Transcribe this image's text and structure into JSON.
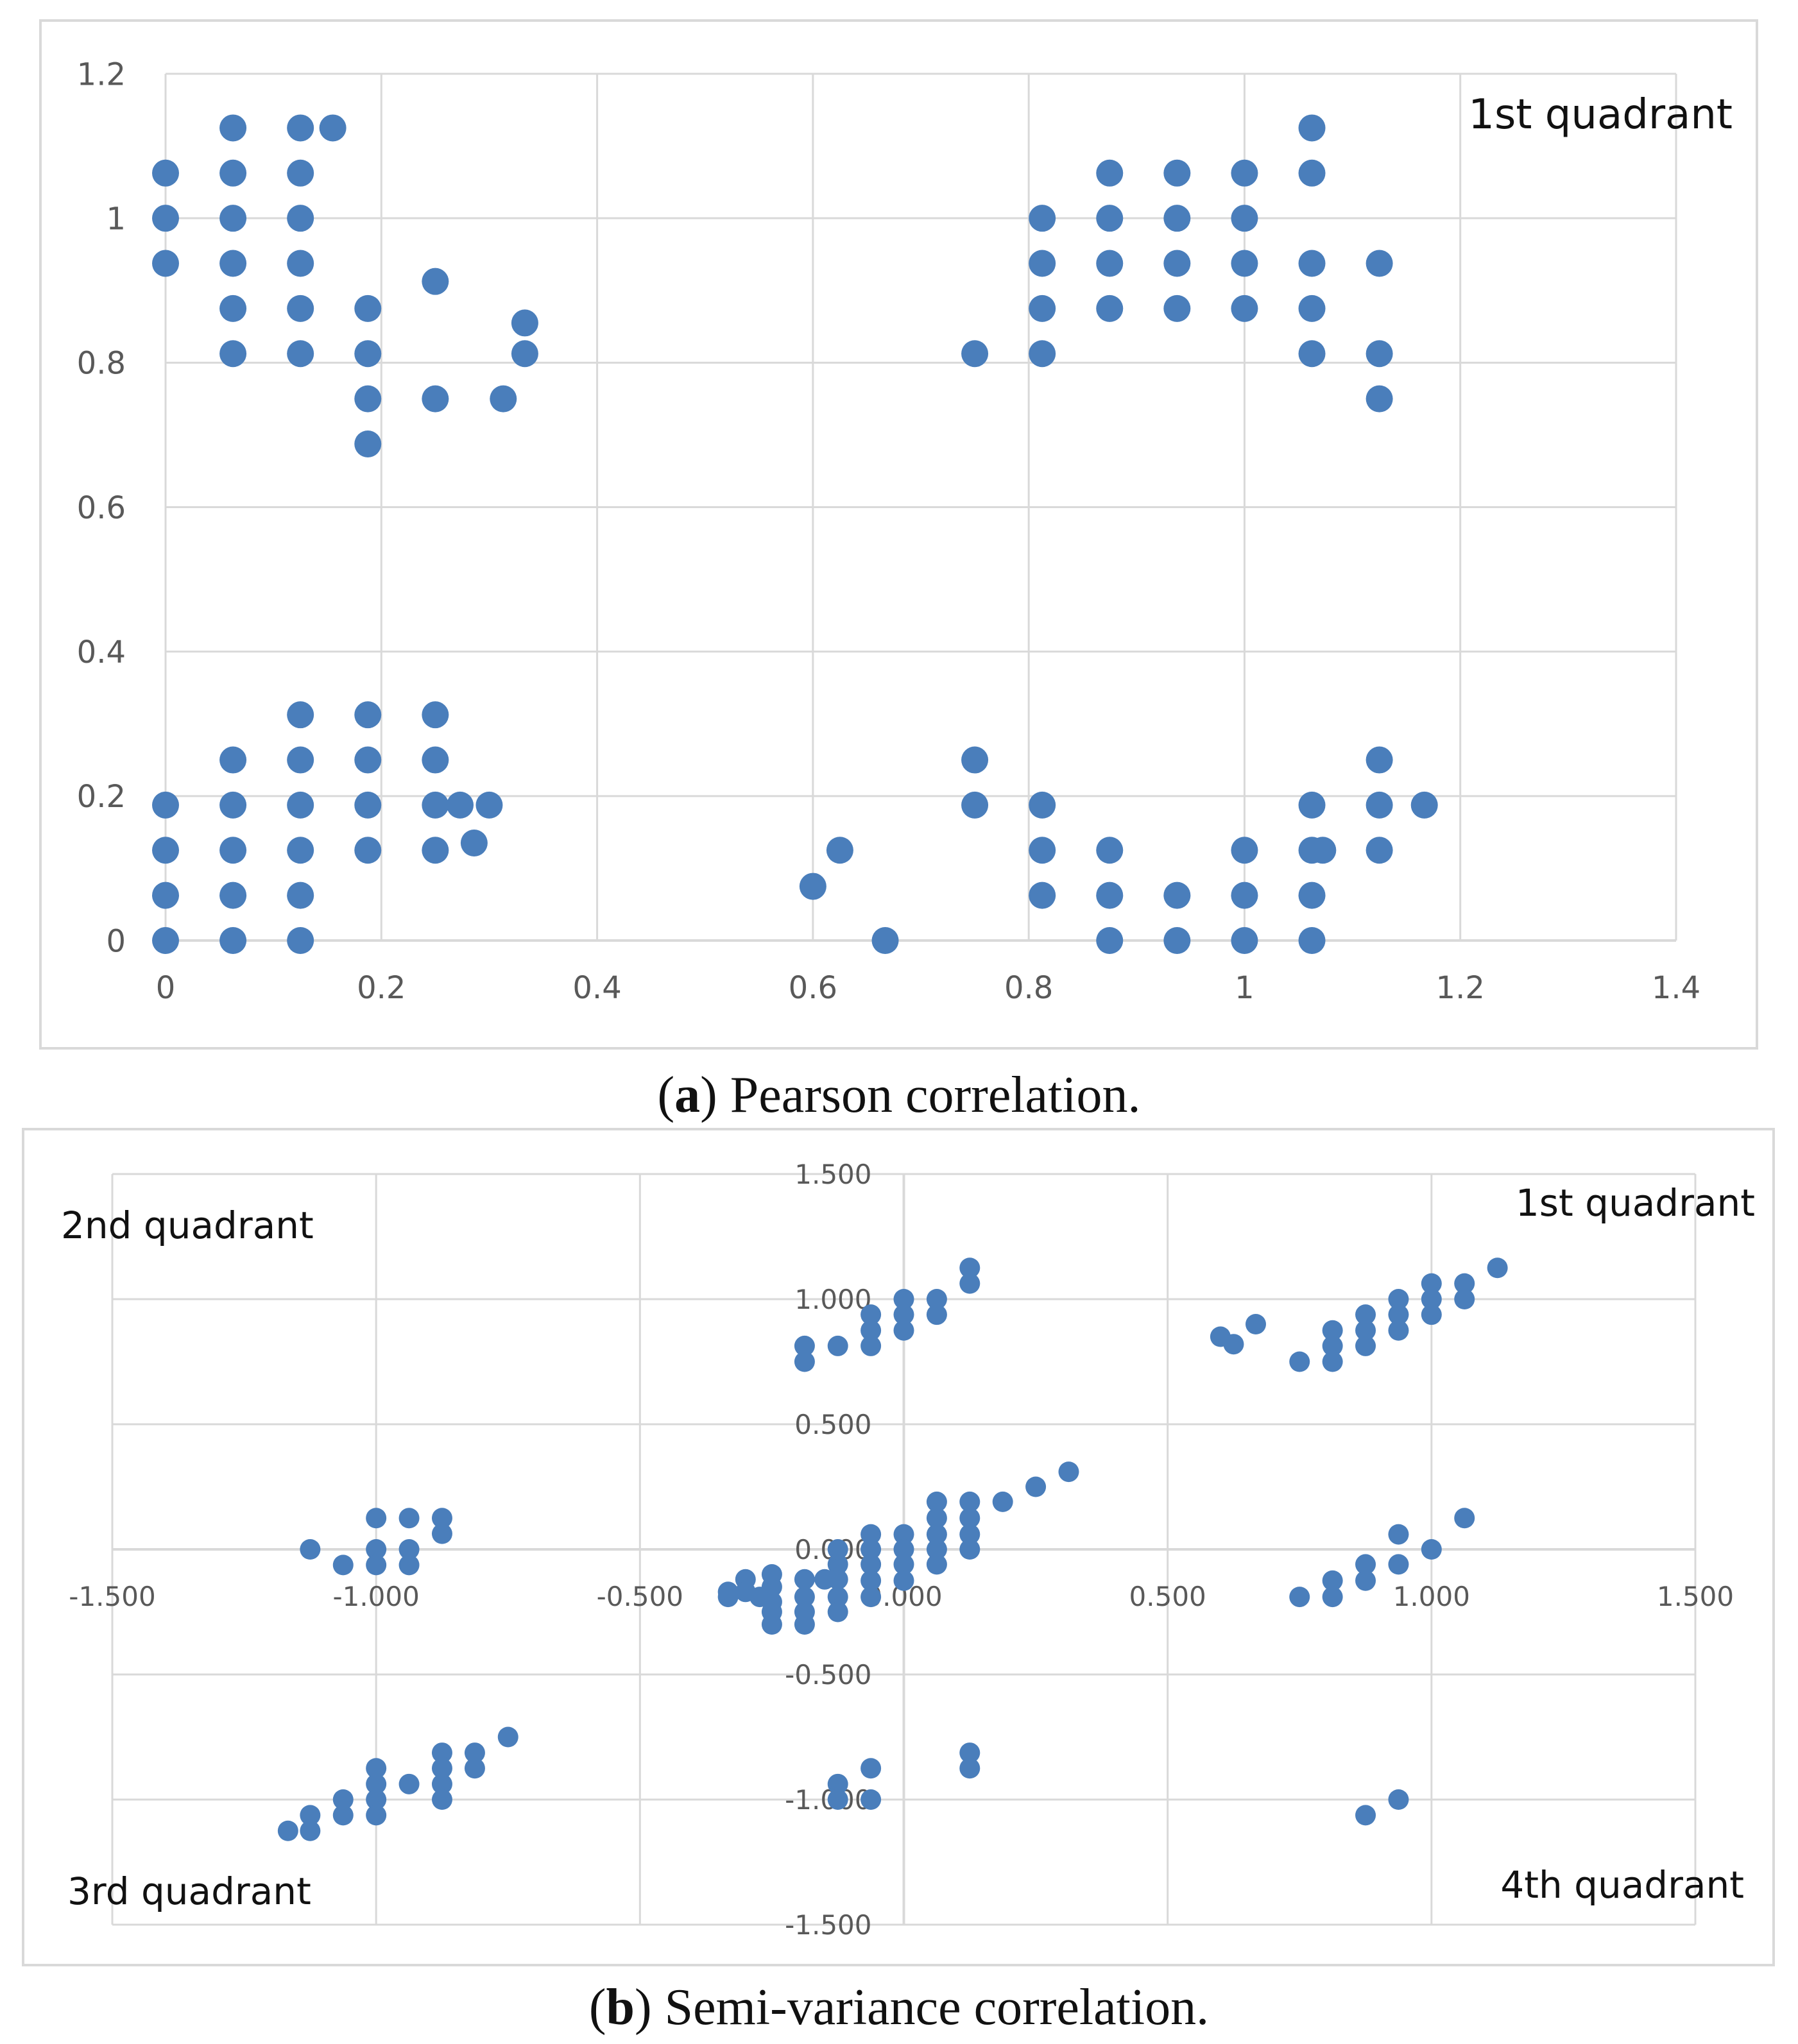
{
  "marker_color": "#4a7ebb",
  "chart_data": [
    {
      "type": "scatter",
      "title": "",
      "caption_label": "a",
      "caption_text": " Pearson correlation.",
      "xlabel": "",
      "ylabel": "",
      "xlim": [
        0,
        1.4
      ],
      "ylim": [
        0,
        1.2
      ],
      "grid": true,
      "x_ticks": [
        "0",
        "0.2",
        "0.4",
        "0.6",
        "0.8",
        "1",
        "1.2",
        "1.4"
      ],
      "y_ticks": [
        "0",
        "0.2",
        "0.4",
        "0.6",
        "0.8",
        "1",
        "1.2"
      ],
      "annotations": [
        {
          "text": "1st  quadrant",
          "position": "top-right"
        }
      ],
      "series": [
        {
          "name": "points",
          "points": [
            [
              0,
              1.0625
            ],
            [
              0,
              1.0
            ],
            [
              0,
              0.9375
            ],
            [
              0,
              0.1875
            ],
            [
              0,
              0.125
            ],
            [
              0,
              0.0625
            ],
            [
              0,
              0
            ],
            [
              0.0625,
              1.125
            ],
            [
              0.0625,
              1.0625
            ],
            [
              0.0625,
              1.0
            ],
            [
              0.0625,
              0.9375
            ],
            [
              0.0625,
              0.875
            ],
            [
              0.0625,
              0.8125
            ],
            [
              0.0625,
              0.25
            ],
            [
              0.0625,
              0.1875
            ],
            [
              0.0625,
              0.125
            ],
            [
              0.0625,
              0.0625
            ],
            [
              0.0625,
              0
            ],
            [
              0.125,
              1.125
            ],
            [
              0.125,
              1.0625
            ],
            [
              0.125,
              1.0
            ],
            [
              0.125,
              0.9375
            ],
            [
              0.125,
              0.875
            ],
            [
              0.125,
              0.8125
            ],
            [
              0.125,
              0.3125
            ],
            [
              0.125,
              0.25
            ],
            [
              0.125,
              0.1875
            ],
            [
              0.125,
              0.125
            ],
            [
              0.125,
              0.0625
            ],
            [
              0.125,
              0
            ],
            [
              0.155,
              1.125
            ],
            [
              0.1875,
              0.875
            ],
            [
              0.1875,
              0.8125
            ],
            [
              0.1875,
              0.75
            ],
            [
              0.1875,
              0.6875
            ],
            [
              0.1875,
              0.3125
            ],
            [
              0.1875,
              0.25
            ],
            [
              0.1875,
              0.1875
            ],
            [
              0.1875,
              0.125
            ],
            [
              0.25,
              0.9125
            ],
            [
              0.25,
              0.75
            ],
            [
              0.25,
              0.3125
            ],
            [
              0.25,
              0.25
            ],
            [
              0.25,
              0.1875
            ],
            [
              0.25,
              0.125
            ],
            [
              0.273,
              0.1875
            ],
            [
              0.286,
              0.135
            ],
            [
              0.3,
              0.1875
            ],
            [
              0.313,
              0.75
            ],
            [
              0.333,
              0.855
            ],
            [
              0.333,
              0.8125
            ],
            [
              0.6,
              0.075
            ],
            [
              0.625,
              0.125
            ],
            [
              0.667,
              0
            ],
            [
              0.75,
              0.8125
            ],
            [
              0.75,
              0.25
            ],
            [
              0.75,
              0.1875
            ],
            [
              0.8125,
              1.0
            ],
            [
              0.8125,
              0.9375
            ],
            [
              0.8125,
              0.875
            ],
            [
              0.8125,
              0.8125
            ],
            [
              0.8125,
              0.1875
            ],
            [
              0.8125,
              0.125
            ],
            [
              0.8125,
              0.0625
            ],
            [
              0.875,
              1.0625
            ],
            [
              0.875,
              1.0
            ],
            [
              0.875,
              0.9375
            ],
            [
              0.875,
              0.875
            ],
            [
              0.875,
              0.125
            ],
            [
              0.875,
              0.0625
            ],
            [
              0.875,
              0
            ],
            [
              0.9375,
              1.0625
            ],
            [
              0.9375,
              1.0
            ],
            [
              0.9375,
              0.9375
            ],
            [
              0.9375,
              0.875
            ],
            [
              0.9375,
              0.0625
            ],
            [
              0.9375,
              0
            ],
            [
              1.0,
              1.0625
            ],
            [
              1.0,
              1.0
            ],
            [
              1.0,
              0.9375
            ],
            [
              1.0,
              0.875
            ],
            [
              1.0,
              0.125
            ],
            [
              1.0,
              0.0625
            ],
            [
              1.0,
              0
            ],
            [
              1.0625,
              1.125
            ],
            [
              1.0625,
              1.0625
            ],
            [
              1.0625,
              0.9375
            ],
            [
              1.0625,
              0.875
            ],
            [
              1.0625,
              0.8125
            ],
            [
              1.0625,
              0.1875
            ],
            [
              1.0625,
              0.125
            ],
            [
              1.0625,
              0.0625
            ],
            [
              1.0625,
              0
            ],
            [
              1.0725,
              0.125
            ],
            [
              1.125,
              0.9375
            ],
            [
              1.125,
              0.8125
            ],
            [
              1.125,
              0.75
            ],
            [
              1.125,
              0.25
            ],
            [
              1.125,
              0.1875
            ],
            [
              1.125,
              0.125
            ],
            [
              1.1667,
              0.1875
            ]
          ]
        }
      ]
    },
    {
      "type": "scatter",
      "title": "",
      "caption_label": "b",
      "caption_text": " Semi-variance correlation.",
      "xlabel": "",
      "ylabel": "",
      "xlim": [
        -1.5,
        1.5
      ],
      "ylim": [
        -1.5,
        1.5
      ],
      "grid": true,
      "x_ticks": [
        "-1.500",
        "-1.000",
        "-0.500",
        "0.000",
        "0.500",
        "1.000",
        "1.500"
      ],
      "y_ticks": [
        "-1.500",
        "-1.000",
        "-0.500",
        "0.000",
        "0.500",
        "1.000",
        "1.500"
      ],
      "annotations": [
        {
          "text": "1st quadrant",
          "position": "top-right"
        },
        {
          "text": "2nd quadrant",
          "position": "top-left"
        },
        {
          "text": "3rd quadrant",
          "position": "bottom-left"
        },
        {
          "text": "4th quadrant",
          "position": "bottom-right"
        }
      ],
      "series": [
        {
          "name": "points",
          "points": [
            [
              -0.188,
              0.813
            ],
            [
              -0.188,
              0.75
            ],
            [
              -0.125,
              0.813
            ],
            [
              -0.0625,
              0.938
            ],
            [
              -0.0625,
              0.875
            ],
            [
              -0.0625,
              0.813
            ],
            [
              0,
              1.0
            ],
            [
              0,
              0.938
            ],
            [
              0,
              0.875
            ],
            [
              0.0625,
              1.0
            ],
            [
              0.0625,
              0.938
            ],
            [
              0.125,
              1.125
            ],
            [
              0.125,
              1.0625
            ],
            [
              0.6,
              0.85
            ],
            [
              0.625,
              0.82
            ],
            [
              0.667,
              0.9
            ],
            [
              0.75,
              0.75
            ],
            [
              0.8125,
              0.875
            ],
            [
              0.8125,
              0.813
            ],
            [
              0.8125,
              0.75
            ],
            [
              0.875,
              0.938
            ],
            [
              0.875,
              0.875
            ],
            [
              0.875,
              0.813
            ],
            [
              0.9375,
              1.0
            ],
            [
              0.9375,
              0.938
            ],
            [
              0.9375,
              0.875
            ],
            [
              1.0,
              1.0625
            ],
            [
              1.0,
              1.0
            ],
            [
              1.0,
              0.938
            ],
            [
              1.0625,
              1.0625
            ],
            [
              1.0625,
              1.0
            ],
            [
              1.125,
              1.125
            ],
            [
              -1.125,
              0
            ],
            [
              -1.0625,
              -0.0625
            ],
            [
              -1.0,
              0.125
            ],
            [
              -1.0,
              0
            ],
            [
              -1.0,
              -0.0625
            ],
            [
              -0.9375,
              0.125
            ],
            [
              -0.9375,
              0
            ],
            [
              -0.9375,
              -0.0625
            ],
            [
              -0.875,
              0.125
            ],
            [
              -0.875,
              0.0625
            ],
            [
              -0.333,
              -0.17
            ],
            [
              -0.333,
              -0.19
            ],
            [
              -0.3,
              -0.12
            ],
            [
              -0.3,
              -0.17
            ],
            [
              -0.273,
              -0.19
            ],
            [
              -0.25,
              -0.15
            ],
            [
              -0.25,
              -0.21
            ],
            [
              -0.25,
              -0.25
            ],
            [
              -0.25,
              -0.3
            ],
            [
              -0.25,
              -0.1
            ],
            [
              -0.188,
              -0.12
            ],
            [
              -0.188,
              -0.19
            ],
            [
              -0.188,
              -0.25
            ],
            [
              -0.188,
              -0.3
            ],
            [
              -0.15,
              -0.12
            ],
            [
              -0.125,
              -0.06
            ],
            [
              -0.125,
              -0.12
            ],
            [
              -0.125,
              -0.19
            ],
            [
              -0.125,
              -0.25
            ],
            [
              -0.125,
              0
            ],
            [
              -0.0625,
              0.06
            ],
            [
              -0.0625,
              0
            ],
            [
              -0.0625,
              -0.06
            ],
            [
              -0.0625,
              -0.125
            ],
            [
              -0.0625,
              -0.19
            ],
            [
              0,
              0.06
            ],
            [
              0,
              0
            ],
            [
              0,
              -0.06
            ],
            [
              0,
              -0.125
            ],
            [
              0.0625,
              0.19
            ],
            [
              0.0625,
              0.125
            ],
            [
              0.0625,
              0.06
            ],
            [
              0.0625,
              0
            ],
            [
              0.0625,
              -0.06
            ],
            [
              0.125,
              0.19
            ],
            [
              0.125,
              0.125
            ],
            [
              0.125,
              0.06
            ],
            [
              0.125,
              0
            ],
            [
              0.1875,
              0.19
            ],
            [
              0.25,
              0.25
            ],
            [
              0.3125,
              0.31
            ],
            [
              0.75,
              -0.19
            ],
            [
              0.8125,
              -0.125
            ],
            [
              0.8125,
              -0.19
            ],
            [
              0.875,
              -0.06
            ],
            [
              0.875,
              -0.125
            ],
            [
              0.9375,
              0.06
            ],
            [
              0.9375,
              -0.06
            ],
            [
              1.0,
              0
            ],
            [
              1.0625,
              0.125
            ],
            [
              -1.167,
              -1.125
            ],
            [
              -1.125,
              -1.0625
            ],
            [
              -1.125,
              -1.125
            ],
            [
              -1.0625,
              -1.0
            ],
            [
              -1.0625,
              -1.0625
            ],
            [
              -1.0,
              -0.875
            ],
            [
              -1.0,
              -0.938
            ],
            [
              -1.0,
              -1.0
            ],
            [
              -1.0,
              -1.0625
            ],
            [
              -0.9375,
              -0.938
            ],
            [
              -0.875,
              -0.813
            ],
            [
              -0.875,
              -0.875
            ],
            [
              -0.875,
              -0.938
            ],
            [
              -0.875,
              -1.0
            ],
            [
              -0.813,
              -0.813
            ],
            [
              -0.813,
              -0.875
            ],
            [
              -0.75,
              -0.75
            ],
            [
              -0.125,
              -0.938
            ],
            [
              -0.125,
              -1.0
            ],
            [
              -0.0625,
              -0.875
            ],
            [
              -0.0625,
              -1.0
            ],
            [
              0.125,
              -0.813
            ],
            [
              0.125,
              -0.875
            ],
            [
              0.875,
              -1.0625
            ],
            [
              0.9375,
              -1.0
            ]
          ]
        }
      ]
    }
  ]
}
